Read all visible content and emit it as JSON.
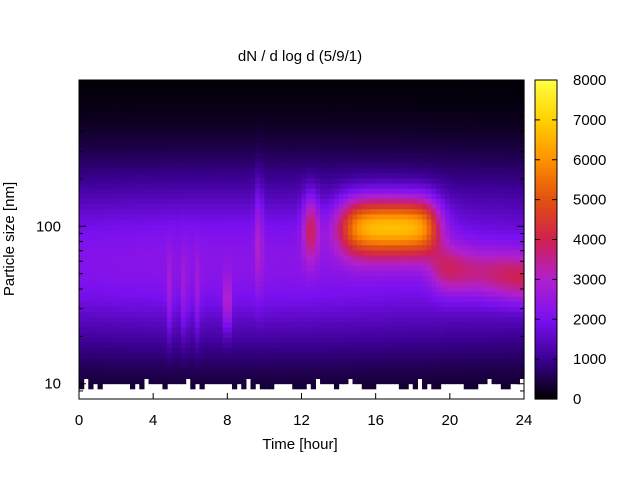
{
  "chart_data": {
    "type": "heatmap",
    "title": "dN / d log d (5/9/1)",
    "xlabel": "Time [hour]",
    "ylabel": "Particle size [nm]",
    "x_range": [
      0,
      24
    ],
    "x_ticks": [
      0,
      4,
      8,
      12,
      16,
      20,
      24
    ],
    "y_scale": "log",
    "y_range_nm": [
      8,
      850
    ],
    "y_tick_values": [
      10,
      100
    ],
    "y_ticks": [
      "10",
      "100"
    ],
    "colorbar": {
      "range": [
        0,
        8000
      ],
      "ticks": [
        0,
        1000,
        2000,
        3000,
        4000,
        5000,
        6000,
        7000,
        8000
      ],
      "palette": [
        "#000000",
        "#3a0090",
        "#7a10f0",
        "#b020d0",
        "#d02050",
        "#e05010",
        "#ff9000",
        "#ffd000",
        "#ffff40"
      ]
    },
    "features": [
      {
        "description": "background mode",
        "time_range": [
          0,
          24
        ],
        "diameter_nm": 55,
        "value": 2200
      },
      {
        "description": "growth event",
        "time_range": [
          13.5,
          19
        ],
        "diameter_nm": 100,
        "value": 7000
      },
      {
        "description": "decline",
        "time_range": [
          19,
          24
        ],
        "diameter_nm": 55,
        "value": 4300
      },
      {
        "description": "short spikes",
        "times": [
          4.9,
          5.7,
          6.4,
          8.0,
          9.7,
          12.5
        ]
      }
    ]
  }
}
